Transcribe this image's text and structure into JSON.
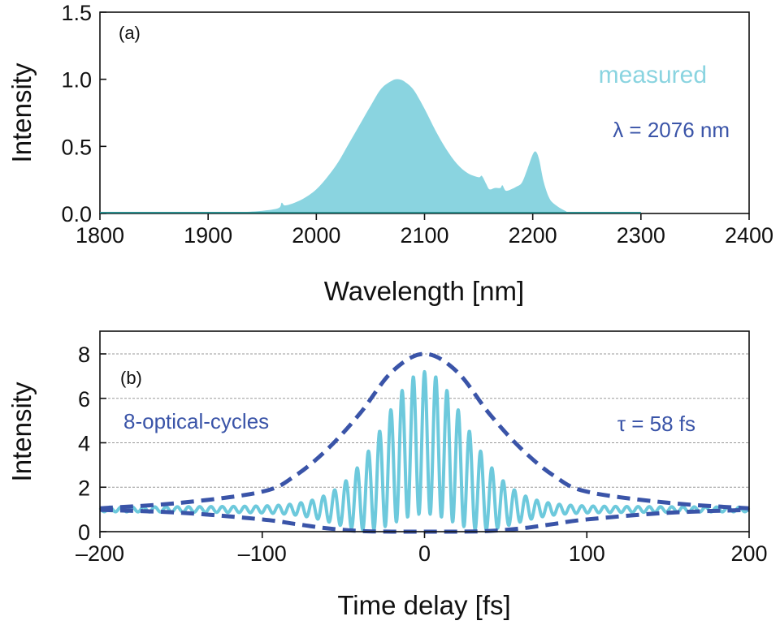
{
  "colors": {
    "measured": "#8ad4e0",
    "fringe": "#6dc9dc",
    "envelope": "#3a54a8",
    "axis": "#111111",
    "grid": "#999999"
  },
  "chart_data": [
    {
      "type": "area",
      "panel_label": "(a)",
      "title": "",
      "xlabel": "Wavelength [nm]",
      "ylabel": "Intensity",
      "xlim": [
        1800,
        2400
      ],
      "ylim": [
        0,
        1.5
      ],
      "xticks": [
        1800,
        1900,
        2000,
        2100,
        2200,
        2300,
        2400
      ],
      "xtick_labels": [
        "1800",
        "1900",
        "2000",
        "2100",
        "2200",
        "2300",
        "2400"
      ],
      "yticks": [
        0,
        0.5,
        1.0,
        1.5
      ],
      "ytick_labels": [
        "0.0",
        "0.5",
        "1.0",
        "1.5"
      ],
      "grid": false,
      "annotations": [
        {
          "text": "measured",
          "role": "series-label"
        },
        {
          "text": "λ = 2076 nm",
          "role": "center-wavelength"
        }
      ],
      "series": [
        {
          "name": "measured",
          "x": [
            1800,
            1900,
            1930,
            1950,
            1965,
            1968,
            1971,
            1980,
            1990,
            2000,
            2010,
            2020,
            2030,
            2040,
            2050,
            2060,
            2070,
            2076,
            2082,
            2090,
            2100,
            2110,
            2120,
            2130,
            2140,
            2150,
            2153,
            2157,
            2160,
            2165,
            2170,
            2172,
            2175,
            2180,
            2185,
            2190,
            2195,
            2200,
            2203,
            2206,
            2210,
            2215,
            2220,
            2230,
            2240,
            2300,
            2400
          ],
          "y": [
            0.0,
            0.0,
            0.01,
            0.02,
            0.04,
            0.08,
            0.06,
            0.08,
            0.12,
            0.18,
            0.27,
            0.38,
            0.52,
            0.66,
            0.8,
            0.93,
            0.99,
            1.0,
            0.98,
            0.92,
            0.78,
            0.62,
            0.48,
            0.37,
            0.3,
            0.27,
            0.28,
            0.22,
            0.18,
            0.19,
            0.19,
            0.21,
            0.17,
            0.18,
            0.2,
            0.23,
            0.33,
            0.44,
            0.46,
            0.4,
            0.24,
            0.12,
            0.07,
            0.02,
            0.0,
            0.0,
            0.0
          ]
        }
      ]
    },
    {
      "type": "line",
      "panel_label": "(b)",
      "title": "",
      "xlabel": "Time delay [fs]",
      "ylabel": "Intensity",
      "xlim": [
        -200,
        200
      ],
      "ylim": [
        0,
        8.5
      ],
      "xticks": [
        -200,
        -100,
        0,
        100,
        200
      ],
      "xtick_labels": [
        "–200",
        "–100",
        "0",
        "100",
        "200"
      ],
      "yticks": [
        0,
        2,
        4,
        6,
        8
      ],
      "ytick_labels": [
        "0",
        "2",
        "4",
        "6",
        "8"
      ],
      "grid": true,
      "grid_axis": "y",
      "annotations": [
        {
          "text": "8-optical-cycles",
          "role": "cycles-label"
        },
        {
          "text": "τ = 58 fs",
          "role": "pulse-duration"
        }
      ],
      "series": [
        {
          "name": "interferometric autocorrelation",
          "style": "solid",
          "model": "fringe",
          "peak": 8,
          "baseline": 1,
          "fwhm_fs": 58,
          "center_wavelength_nm": 2076
        },
        {
          "name": "upper envelope",
          "style": "dashed",
          "x": [
            -200,
            -150,
            -100,
            -80,
            -60,
            -40,
            -20,
            0,
            20,
            40,
            60,
            80,
            100,
            150,
            200
          ],
          "y": [
            1.05,
            1.3,
            1.8,
            2.5,
            3.7,
            5.3,
            7.2,
            8.0,
            7.2,
            5.3,
            3.7,
            2.5,
            1.8,
            1.3,
            1.05
          ]
        },
        {
          "name": "lower envelope",
          "style": "dashed",
          "x": [
            -200,
            -150,
            -100,
            -80,
            -60,
            -40,
            -20,
            0,
            20,
            40,
            60,
            80,
            100,
            150,
            200
          ],
          "y": [
            0.98,
            0.85,
            0.55,
            0.35,
            0.15,
            0.03,
            0.0,
            0.0,
            0.0,
            0.03,
            0.15,
            0.35,
            0.55,
            0.85,
            0.98
          ]
        }
      ]
    }
  ]
}
